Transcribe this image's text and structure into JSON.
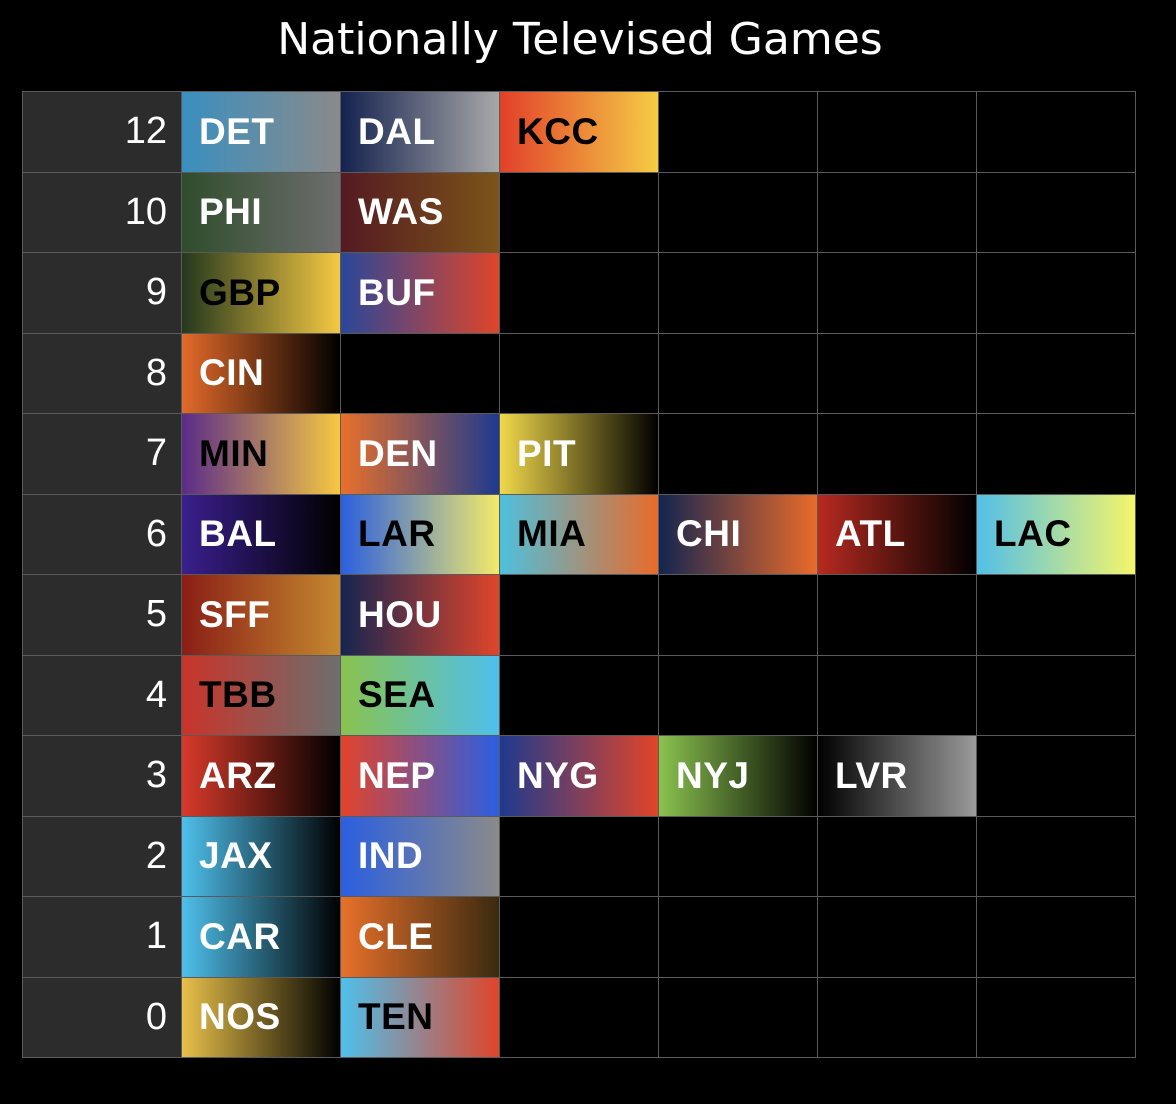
{
  "title": "Nationally Televised Games",
  "chart_data": {
    "type": "table",
    "title": "Nationally Televised Games",
    "rows": [
      {
        "count": "12",
        "teams": [
          {
            "name": "DET",
            "colors": [
              "#3a8fbf",
              "#8a8a8a"
            ],
            "text": "#ffffff"
          },
          {
            "name": "DAL",
            "colors": [
              "#14224f",
              "#a8a8a8"
            ],
            "text": "#ffffff"
          },
          {
            "name": "KCC",
            "colors": [
              "#e2402a",
              "#f5cc45"
            ],
            "text": "#000000"
          }
        ]
      },
      {
        "count": "10",
        "teams": [
          {
            "name": "PHI",
            "colors": [
              "#2f4d2c",
              "#6e6e6e"
            ],
            "text": "#ffffff"
          },
          {
            "name": "WAS",
            "colors": [
              "#541a22",
              "#7c5419"
            ],
            "text": "#ffffff"
          }
        ]
      },
      {
        "count": "9",
        "teams": [
          {
            "name": "GBP",
            "colors": [
              "#25381d",
              "#f5c842"
            ],
            "text": "#000000"
          },
          {
            "name": "BUF",
            "colors": [
              "#2a4799",
              "#e0452a"
            ],
            "text": "#ffffff"
          }
        ]
      },
      {
        "count": "8",
        "teams": [
          {
            "name": "CIN",
            "colors": [
              "#e36a2a",
              "#000000"
            ],
            "text": "#ffffff"
          }
        ]
      },
      {
        "count": "7",
        "teams": [
          {
            "name": "MIN",
            "colors": [
              "#5b2b88",
              "#f5c842"
            ],
            "text": "#000000"
          },
          {
            "name": "DEN",
            "colors": [
              "#e8702a",
              "#1e3a8e"
            ],
            "text": "#ffffff"
          },
          {
            "name": "PIT",
            "colors": [
              "#f0d84a",
              "#000000"
            ],
            "text": "#ffffff"
          }
        ]
      },
      {
        "count": "6",
        "teams": [
          {
            "name": "BAL",
            "colors": [
              "#3a1f8e",
              "#000000"
            ],
            "text": "#ffffff"
          },
          {
            "name": "LAR",
            "colors": [
              "#2b5fe0",
              "#f2ea6a"
            ],
            "text": "#000000"
          },
          {
            "name": "MIA",
            "colors": [
              "#4ec0dc",
              "#e86b2a"
            ],
            "text": "#000000"
          },
          {
            "name": "CHI",
            "colors": [
              "#142550",
              "#ea6b2a"
            ],
            "text": "#ffffff"
          },
          {
            "name": "ATL",
            "colors": [
              "#b62a20",
              "#000000"
            ],
            "text": "#ffffff"
          },
          {
            "name": "LAC",
            "colors": [
              "#52bfe8",
              "#f5f56a"
            ],
            "text": "#000000"
          }
        ]
      },
      {
        "count": "5",
        "teams": [
          {
            "name": "SFF",
            "colors": [
              "#8a1e16",
              "#c4882f"
            ],
            "text": "#ffffff"
          },
          {
            "name": "HOU",
            "colors": [
              "#152551",
              "#e0452a"
            ],
            "text": "#ffffff"
          }
        ]
      },
      {
        "count": "4",
        "teams": [
          {
            "name": "TBB",
            "colors": [
              "#c9342a",
              "#6e6e6e"
            ],
            "text": "#000000"
          },
          {
            "name": "SEA",
            "colors": [
              "#8ac24f",
              "#4ec0ec"
            ],
            "text": "#000000"
          }
        ]
      },
      {
        "count": "3",
        "teams": [
          {
            "name": "ARZ",
            "colors": [
              "#d83a2a",
              "#000000"
            ],
            "text": "#ffffff"
          },
          {
            "name": "NEP",
            "colors": [
              "#e3432a",
              "#2b5fe0"
            ],
            "text": "#ffffff"
          },
          {
            "name": "NYG",
            "colors": [
              "#1e3a8e",
              "#e0452a"
            ],
            "text": "#ffffff"
          },
          {
            "name": "NYJ",
            "colors": [
              "#8ac24f",
              "#000000"
            ],
            "text": "#ffffff"
          },
          {
            "name": "LVR",
            "colors": [
              "#000000",
              "#9a9a9a"
            ],
            "text": "#ffffff"
          }
        ]
      },
      {
        "count": "2",
        "teams": [
          {
            "name": "JAX",
            "colors": [
              "#4ec0ec",
              "#000000"
            ],
            "text": "#ffffff"
          },
          {
            "name": "IND",
            "colors": [
              "#2b5fe0",
              "#8a8a8a"
            ],
            "text": "#ffffff"
          }
        ]
      },
      {
        "count": "1",
        "teams": [
          {
            "name": "CAR",
            "colors": [
              "#4ec0ec",
              "#000000"
            ],
            "text": "#ffffff"
          },
          {
            "name": "CLE",
            "colors": [
              "#e8702a",
              "#3a2a10"
            ],
            "text": "#ffffff"
          }
        ]
      },
      {
        "count": "0",
        "teams": [
          {
            "name": "NOS",
            "colors": [
              "#e8c04a",
              "#000000"
            ],
            "text": "#ffffff"
          },
          {
            "name": "TEN",
            "colors": [
              "#4ec0ec",
              "#e0452a"
            ],
            "text": "#000000"
          }
        ]
      }
    ],
    "max_columns": 6,
    "colors": {
      "background": "#000000",
      "label_cell": "#2c2c2c",
      "grid_line": "#5a5a5a",
      "title_text": "#ffffff"
    }
  }
}
